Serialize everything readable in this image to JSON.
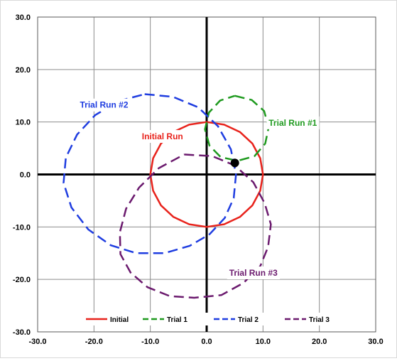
{
  "chart_data": {
    "type": "line",
    "xlim": [
      -30,
      30
    ],
    "ylim": [
      -30,
      30
    ],
    "x_ticks": [
      "-30.0",
      "-20.0",
      "-10.0",
      "0.0",
      "10.0",
      "20.0",
      "30.0"
    ],
    "y_ticks": [
      "30.0",
      "20.0",
      "10.0",
      "0.0",
      "-10.0",
      "-20.0",
      "-30.0"
    ],
    "grid": true,
    "legend_position": "bottom",
    "series": [
      {
        "name": "Initial",
        "color": "#e8231c",
        "dash": "solid",
        "points": [
          [
            0,
            10
          ],
          [
            3.1,
            9.5
          ],
          [
            5.9,
            8.1
          ],
          [
            8.1,
            5.9
          ],
          [
            9.5,
            3.1
          ],
          [
            10,
            0
          ],
          [
            9.5,
            -3.1
          ],
          [
            8.1,
            -5.9
          ],
          [
            5.9,
            -8.1
          ],
          [
            3.1,
            -9.5
          ],
          [
            0,
            -10
          ],
          [
            -3.1,
            -9.5
          ],
          [
            -5.9,
            -8.1
          ],
          [
            -8.1,
            -5.9
          ],
          [
            -9.5,
            -3.1
          ],
          [
            -10,
            0
          ],
          [
            -9.5,
            3.1
          ],
          [
            -8.1,
            5.9
          ],
          [
            -5.9,
            8.1
          ],
          [
            -3.1,
            9.5
          ],
          [
            0,
            10
          ]
        ]
      },
      {
        "name": "Trial 1",
        "color": "#1f9a1f",
        "dash": "long",
        "points": [
          [
            5,
            15
          ],
          [
            8,
            14.2
          ],
          [
            10.2,
            12.1
          ],
          [
            11,
            9
          ],
          [
            10.4,
            5.9
          ],
          [
            8.5,
            3.5
          ],
          [
            5.5,
            2.6
          ],
          [
            2.5,
            3.3
          ],
          [
            0.5,
            5.5
          ],
          [
            -0.3,
            8.6
          ],
          [
            0.4,
            11.8
          ],
          [
            2.4,
            14.1
          ],
          [
            5,
            15
          ]
        ]
      },
      {
        "name": "Trial 2",
        "color": "#1f3de0",
        "dash": "long",
        "points": [
          [
            -11,
            15.3
          ],
          [
            -6,
            14.8
          ],
          [
            -1.5,
            12.8
          ],
          [
            2,
            9.2
          ],
          [
            4.3,
            4.8
          ],
          [
            5.2,
            0
          ],
          [
            4.8,
            -4.5
          ],
          [
            3.2,
            -8.3
          ],
          [
            0.5,
            -11.4
          ],
          [
            -3,
            -13.6
          ],
          [
            -7.5,
            -15
          ],
          [
            -12.5,
            -15
          ],
          [
            -17,
            -13.5
          ],
          [
            -21,
            -10.5
          ],
          [
            -24,
            -6.3
          ],
          [
            -25.4,
            -1.6
          ],
          [
            -25,
            3.2
          ],
          [
            -23,
            7.6
          ],
          [
            -19.8,
            11.3
          ],
          [
            -15.6,
            14
          ],
          [
            -11,
            15.3
          ]
        ]
      },
      {
        "name": "Trial 3",
        "color": "#6b1a6e",
        "dash": "long",
        "points": [
          [
            -4,
            3.8
          ],
          [
            1,
            3.5
          ],
          [
            5,
            1.7
          ],
          [
            8.3,
            -1.5
          ],
          [
            10.3,
            -5.5
          ],
          [
            11.4,
            -9.5
          ],
          [
            10.9,
            -13.8
          ],
          [
            9.5,
            -17.5
          ],
          [
            6.5,
            -20.7
          ],
          [
            2.6,
            -23
          ],
          [
            -2.2,
            -23.5
          ],
          [
            -6.5,
            -23.2
          ],
          [
            -10.5,
            -21.5
          ],
          [
            -13.5,
            -18.7
          ],
          [
            -15.3,
            -15.2
          ],
          [
            -15.4,
            -11
          ],
          [
            -14.3,
            -6.5
          ],
          [
            -12,
            -2.5
          ],
          [
            -8.5,
            1.2
          ],
          [
            -4,
            3.8
          ]
        ]
      }
    ],
    "marker": {
      "x": 5,
      "y": 2.2,
      "color": "#000000"
    },
    "annotations": [
      {
        "text": "Initial Run",
        "x": -11.5,
        "y": 6.7,
        "color": "#e8231c"
      },
      {
        "text": "Trial Run #1",
        "x": 11,
        "y": 9.3,
        "color": "#1f9a1f"
      },
      {
        "text": "Trial Run #2",
        "x": -22.5,
        "y": 12.7,
        "color": "#1f3de0"
      },
      {
        "text": "Trial Run #3",
        "x": 4,
        "y": -19.3,
        "color": "#6b1a6e"
      }
    ]
  }
}
